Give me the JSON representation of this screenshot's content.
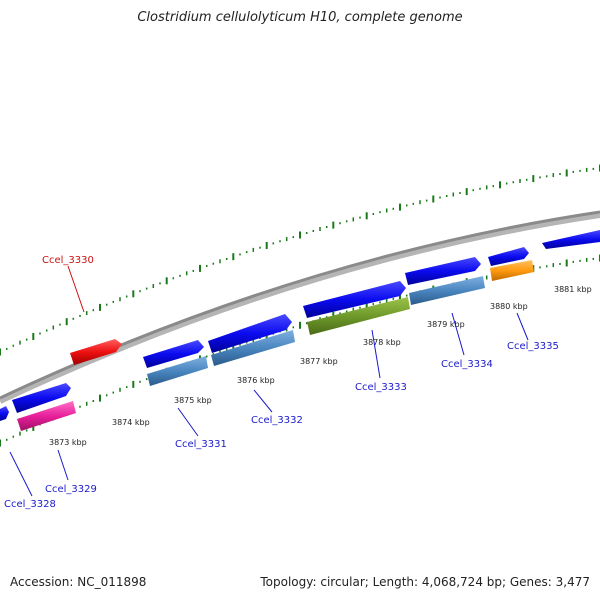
{
  "header": {
    "title": "Clostridium cellulolyticum H10, complete genome"
  },
  "footer": {
    "accession": "Accession: NC_011898",
    "info": "Topology: circular; Length: 4,068,724 bp; Genes: 3,477"
  },
  "kbp_labels": [
    "3873 kbp",
    "3874 kbp",
    "3875 kbp",
    "3876 kbp",
    "3877 kbp",
    "3878 kbp",
    "3879 kbp",
    "3880 kbp",
    "3881 kbp"
  ],
  "gene_labels": [
    "Ccel_3328",
    "Ccel_3329",
    "Ccel_3330",
    "Ccel_3331",
    "Ccel_3332",
    "Ccel_3333",
    "Ccel_3334",
    "Ccel_3335"
  ],
  "colors": {
    "blue_gene": "#0b0bf0",
    "steel_gene": "#4a86c0",
    "olive_gene": "#6f9a2a",
    "orange_gene": "#ff9a10",
    "pink_gene": "#e8209a",
    "red_gene": "#ee1111",
    "backbone": "#888888",
    "tick": "#1a7a1a",
    "label_blue": "#1a1acc",
    "label_red": "#cc1111"
  }
}
